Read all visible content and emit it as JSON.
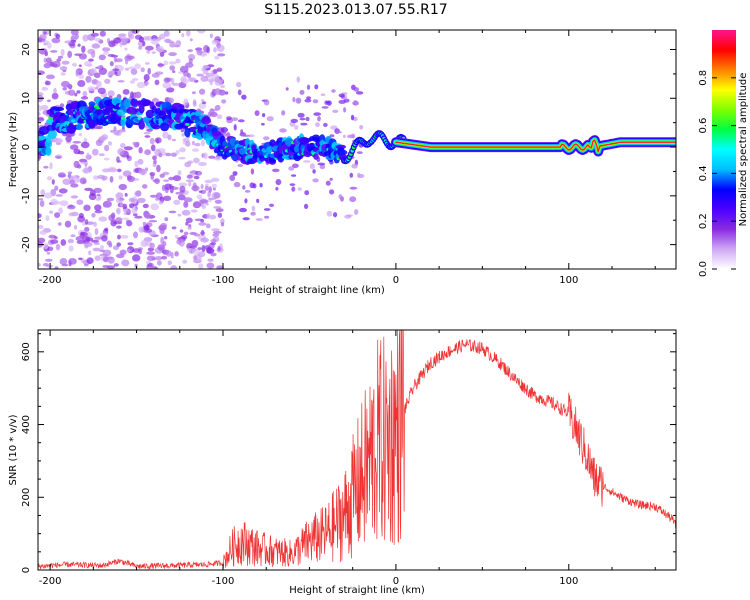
{
  "title": "S115.2023.013.07.55.R17",
  "chart_data": [
    {
      "type": "heatmap",
      "xlabel": "Height of straight line (km)",
      "ylabel": "Frequency (Hz)",
      "xlim": [
        -207,
        162
      ],
      "ylim": [
        -25,
        24
      ],
      "x_ticks": [
        -200,
        -100,
        0,
        100
      ],
      "y_ticks": [
        -20,
        -10,
        0,
        10,
        20
      ],
      "colorbar": {
        "label": "Normalized spectral amplitude",
        "range": [
          0,
          1
        ],
        "ticks": [
          "0.0",
          "0.2",
          "0.4",
          "0.6",
          "0.8"
        ],
        "colors": [
          "#ffffff",
          "#cfa8f5",
          "#8a2be2",
          "#4b00ff",
          "#0000ff",
          "#00bfff",
          "#00ffff",
          "#00ff40",
          "#80ff00",
          "#ffff00",
          "#ff8000",
          "#ff0000",
          "#ff1493"
        ]
      },
      "ridge": [
        {
          "x": -200,
          "f": 5
        },
        {
          "x": -175,
          "f": 7
        },
        {
          "x": -150,
          "f": 7
        },
        {
          "x": -125,
          "f": 6
        },
        {
          "x": -110,
          "f": 4
        },
        {
          "x": -100,
          "f": 0
        },
        {
          "x": -85,
          "f": -1
        },
        {
          "x": -70,
          "f": -1
        },
        {
          "x": -55,
          "f": 0
        },
        {
          "x": -40,
          "f": 0
        },
        {
          "x": -30,
          "f": -2
        },
        {
          "x": -15,
          "f": 2
        },
        {
          "x": 0,
          "f": 1
        },
        {
          "x": 20,
          "f": 0
        },
        {
          "x": 60,
          "f": 0
        },
        {
          "x": 100,
          "f": 0
        },
        {
          "x": 115,
          "f": 0
        },
        {
          "x": 130,
          "f": 1
        },
        {
          "x": 160,
          "f": 1
        }
      ]
    },
    {
      "type": "line",
      "xlabel": "Height of straight line (km)",
      "ylabel": "SNR (10 * v/v)",
      "xlim": [
        -207,
        162
      ],
      "ylim": [
        0,
        660
      ],
      "x_ticks": [
        -200,
        -100,
        0,
        100
      ],
      "y_ticks": [
        0,
        200,
        400,
        600
      ],
      "color": "#ee3333",
      "series": [
        {
          "x": [
            -207,
            -190,
            -170,
            -160,
            -150,
            -130,
            -110,
            -100,
            -95,
            -90,
            -80,
            -70,
            -60,
            -50,
            -40,
            -30,
            -20,
            -15,
            -10,
            -5,
            0,
            10,
            20,
            30,
            40,
            50,
            60,
            70,
            80,
            90,
            100,
            105,
            110,
            115,
            120,
            130,
            140,
            150,
            160,
            162
          ],
          "y": [
            10,
            15,
            12,
            25,
            10,
            12,
            15,
            20,
            60,
            80,
            60,
            50,
            45,
            80,
            100,
            150,
            250,
            300,
            350,
            350,
            380,
            500,
            570,
            600,
            620,
            610,
            570,
            520,
            480,
            460,
            430,
            380,
            320,
            250,
            230,
            200,
            180,
            175,
            140,
            120
          ]
        }
      ]
    }
  ]
}
